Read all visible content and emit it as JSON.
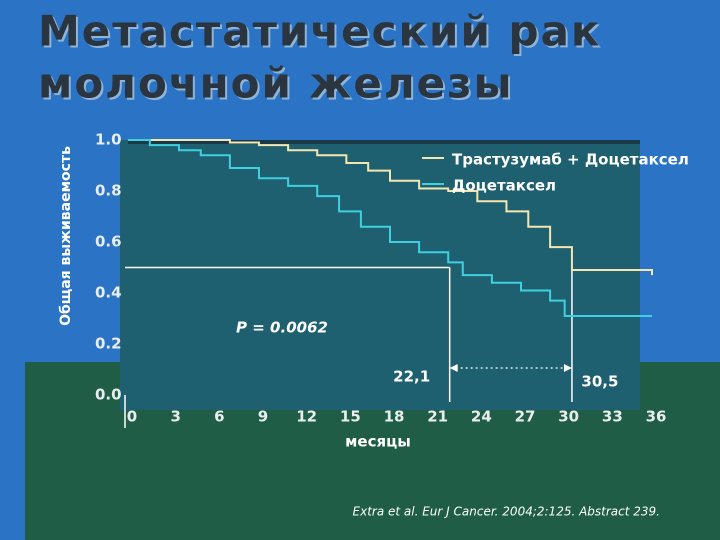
{
  "title_lines": [
    "Метастатический рак",
    "молочной железы"
  ],
  "chart_data": {
    "type": "step",
    "ylabel": "Общая выживаемость",
    "xlabel": "месяцы",
    "xlim": [
      0,
      36
    ],
    "ylim": [
      0,
      1
    ],
    "xticks": [
      0,
      3,
      6,
      9,
      12,
      15,
      18,
      21,
      24,
      27,
      30,
      33,
      36
    ],
    "yticks": [
      {
        "value": 0,
        "label": "0.0"
      },
      0.2,
      0.4,
      0.6,
      0.8,
      {
        "value": 1,
        "label": "1.0"
      }
    ],
    "reference_line": 0.5,
    "medians": [
      {
        "value": 22.1,
        "label": "22,1"
      },
      {
        "value": 30.5,
        "label": "30,5"
      }
    ],
    "annotation": "P = 0.0062",
    "citation": "Extra et al. Eur J Cancer. 2004;2:125. Abstract 239.",
    "series": [
      {
        "name": "Трастузумаб + Доцетаксел",
        "color": "#f3e6b0",
        "x": [
          0,
          7,
          9,
          11,
          13,
          15,
          16.5,
          18,
          20,
          22,
          24,
          26,
          27.5,
          29,
          30.5,
          36
        ],
        "values": [
          1.0,
          0.99,
          0.98,
          0.96,
          0.94,
          0.91,
          0.88,
          0.84,
          0.81,
          0.8,
          0.76,
          0.72,
          0.66,
          0.58,
          0.49,
          0.47
        ]
      },
      {
        "name": "Доцетаксел",
        "color": "#3fd0e0",
        "x": [
          0,
          1.5,
          3.5,
          5,
          7,
          9,
          11,
          13,
          14.5,
          16,
          18,
          20,
          22,
          23,
          25,
          27,
          29,
          30,
          36
        ],
        "values": [
          1.0,
          0.98,
          0.96,
          0.94,
          0.89,
          0.85,
          0.82,
          0.78,
          0.72,
          0.66,
          0.6,
          0.56,
          0.52,
          0.47,
          0.44,
          0.41,
          0.37,
          0.31,
          0.31
        ]
      }
    ]
  }
}
